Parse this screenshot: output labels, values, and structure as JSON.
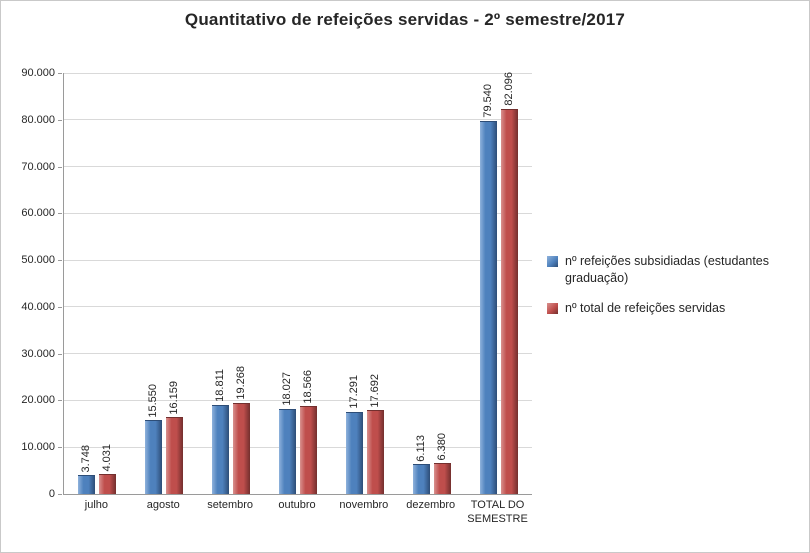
{
  "window": {
    "background": "#ffffff",
    "border_color": "#c9c9c9"
  },
  "chart_data": {
    "type": "bar",
    "title": "Quantitativo de refeições servidas - 2º semestre/2017",
    "xlabel": "",
    "ylabel": "",
    "categories": [
      "julho",
      "agosto",
      "setembro",
      "outubro",
      "novembro",
      "dezembro",
      "TOTAL DO SEMESTRE"
    ],
    "series": [
      {
        "name": "nº refeições subsidiadas (estudantes graduação)",
        "color": "#4e81bd",
        "color_light": "#8fb2dc",
        "color_dark": "#2d4d77",
        "values": [
          3748,
          15550,
          18811,
          18027,
          17291,
          6113,
          79540
        ],
        "labels": [
          "3.748",
          "15.550",
          "18.811",
          "18.027",
          "17.291",
          "6.113",
          "79.540"
        ]
      },
      {
        "name": "nº total de refeições servidas",
        "color": "#bf4e4c",
        "color_light": "#d9918e",
        "color_dark": "#732f2e",
        "values": [
          4031,
          16159,
          19268,
          18566,
          17692,
          6380,
          82096
        ],
        "labels": [
          "4.031",
          "16.159",
          "19.268",
          "18.566",
          "17.692",
          "6.380",
          "82.096"
        ]
      }
    ],
    "ylim": [
      0,
      90000
    ],
    "ytick_step": 10000,
    "ytick_labels": [
      "0",
      "10.000",
      "20.000",
      "30.000",
      "40.000",
      "50.000",
      "60.000",
      "70.000",
      "80.000",
      "90.000"
    ],
    "grid": true,
    "legend_position": "right"
  }
}
